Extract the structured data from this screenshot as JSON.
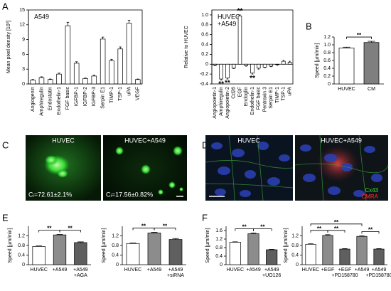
{
  "panel_labels": [
    "A",
    "B",
    "C",
    "D",
    "E",
    "F"
  ],
  "images": [
    {
      "title": "HUVEC",
      "caption": "Cᵢ=72.61±2.1%"
    },
    {
      "title": "HUVEC+A549",
      "caption": "Cᵢ=17.56±0.82%"
    },
    {
      "title": "HUVEC"
    },
    {
      "title": "HUVEC+A549",
      "legend": [
        "Cx43",
        "CMRA"
      ]
    }
  ],
  "chart_data": [
    {
      "type": "bar",
      "title": [
        "A549"
      ],
      "y_label": "Mean pixel density [10³]",
      "categories": [
        "Angiogenin",
        "Amphiregulin",
        "Endostatin",
        "Endothelin-1",
        "FGF basic",
        "IGFBP-1",
        "IGFBP-2",
        "IGFBP-3",
        "Serpin E1",
        "TIMP-1",
        "TSP-1",
        "uPA",
        "VEGF"
      ],
      "values": [
        0.8,
        1.3,
        0.9,
        2.0,
        11.8,
        4.2,
        1.1,
        1.6,
        9.1,
        4.7,
        7.1,
        12.3,
        0.9
      ],
      "errors": [
        0.1,
        0.15,
        0.1,
        0.2,
        0.7,
        0.3,
        0.1,
        0.2,
        0.4,
        0.3,
        0.4,
        0.6,
        0.1
      ],
      "colors": [
        "#ffffff",
        "#ffffff",
        "#ffffff",
        "#ffffff",
        "#ffffff",
        "#ffffff",
        "#ffffff",
        "#ffffff",
        "#ffffff",
        "#ffffff",
        "#ffffff",
        "#ffffff",
        "#ffffff"
      ],
      "ylim": [
        0,
        15
      ],
      "yticks": [
        0,
        3,
        6,
        9,
        12,
        15
      ]
    },
    {
      "type": "bar",
      "title": [
        "HUVEC",
        "+A549"
      ],
      "y_label": "Relative to HUVEC",
      "categories": [
        "Angiopoietin-1",
        "Amphiregulin",
        "Angiopoietin-2",
        "Cd26",
        "EGF",
        "Endoglin",
        "Endothelin-1",
        "FGF basic",
        "Pentraxin 3",
        "Serpin E1",
        "TIMP-1",
        "TSP-1",
        "uPA"
      ],
      "values": [
        -0.02,
        -0.3,
        -0.28,
        -0.08,
        0.98,
        -0.03,
        -0.18,
        -0.08,
        -0.06,
        -0.04,
        -0.01,
        0.06,
        0.04
      ],
      "errors": [
        0.01,
        0.02,
        0.02,
        0.01,
        0.02,
        0.01,
        0.02,
        0.02,
        0.01,
        0.01,
        0.01,
        0.02,
        0.02
      ],
      "colors": [
        "#ffffff",
        "#ffffff",
        "#ffffff",
        "#ffffff",
        "#ffffff",
        "#ffffff",
        "#ffffff",
        "#ffffff",
        "#ffffff",
        "#ffffff",
        "#ffffff",
        "#ffffff",
        "#ffffff"
      ],
      "value_annotations": [
        null,
        "**",
        "**",
        null,
        "**",
        null,
        "**",
        null,
        null,
        null,
        null,
        null,
        null
      ],
      "ylim": [
        -0.4,
        1.1
      ],
      "yticks": [
        -0.4,
        -0.2,
        0,
        0.2,
        0.4,
        0.6,
        0.8,
        {
          "value": 1,
          "label": "1.0"
        }
      ]
    },
    {
      "type": "bar",
      "y_label": "Speed [µm/min]",
      "categories": [
        [
          "HUVEC"
        ],
        [
          "CM"
        ]
      ],
      "values": [
        0.92,
        1.06
      ],
      "errors": [
        0.02,
        0.03
      ],
      "colors": [
        "#ffffff",
        "#7f7f7f"
      ],
      "comparisons": [
        {
          "pair": [
            0,
            1
          ],
          "label": "**"
        }
      ],
      "ylim": [
        0,
        1.2
      ],
      "yticks": [
        0,
        0.2,
        0.4,
        0.6,
        0.8,
        {
          "value": 1,
          "label": "1.0"
        },
        1.2
      ]
    },
    {
      "type": "bar",
      "y_label": "Speed [µm/min]",
      "categories": [
        [
          "HUVEC"
        ],
        [
          "+A549"
        ],
        [
          "+A549",
          "+AGA"
        ]
      ],
      "values": [
        0.76,
        1.24,
        0.92
      ],
      "errors": [
        0.02,
        0.02,
        0.03
      ],
      "colors": [
        "#ffffff",
        "#8c8c8c",
        "#5f5f5f"
      ],
      "comparisons": [
        {
          "pair": [
            0,
            1
          ],
          "label": "**"
        },
        {
          "pair": [
            1,
            2
          ],
          "label": "**"
        }
      ],
      "ylim": [
        0,
        1.6
      ],
      "yticks": [
        0,
        0.4,
        0.8,
        1.2
      ]
    },
    {
      "type": "bar",
      "y_label": "Speed [µm/min]",
      "categories": [
        [
          "HUVEC"
        ],
        [
          "+A549"
        ],
        [
          "+A549",
          "+siRNA"
        ]
      ],
      "values": [
        0.88,
        1.32,
        1.05
      ],
      "errors": [
        0.02,
        0.03,
        0.04
      ],
      "colors": [
        "#ffffff",
        "#8c8c8c",
        "#5f5f5f"
      ],
      "comparisons": [
        {
          "pair": [
            0,
            1
          ],
          "label": "**"
        },
        {
          "pair": [
            1,
            2
          ],
          "label": "**"
        }
      ],
      "ylim": [
        0,
        1.6
      ],
      "yticks": [
        0,
        0.4,
        0.8,
        1.2
      ]
    },
    {
      "type": "bar",
      "y_label": "Speed [µm/min]",
      "categories": [
        [
          "HUVEC"
        ],
        [
          "+A549"
        ],
        [
          "+A549",
          "+UO126"
        ]
      ],
      "values": [
        1.05,
        1.45,
        0.7
      ],
      "errors": [
        0.02,
        0.03,
        0.02
      ],
      "colors": [
        "#ffffff",
        "#8c8c8c",
        "#5f5f5f"
      ],
      "comparisons": [
        {
          "pair": [
            0,
            1
          ],
          "label": "**"
        },
        {
          "pair": [
            1,
            2
          ],
          "label": "**"
        }
      ],
      "ylim": [
        0,
        1.8
      ],
      "yticks": [
        0,
        0.4,
        0.8,
        1.2,
        1.6
      ]
    },
    {
      "type": "bar",
      "y_label": "Speed [µm/min]",
      "categories": [
        [
          "HUVEC"
        ],
        [
          "+EGF"
        ],
        [
          "+EGF",
          "+PD158780"
        ],
        [
          "+A549"
        ],
        [
          "+A549",
          "+PD158780"
        ]
      ],
      "values": [
        0.85,
        1.22,
        0.65,
        1.18,
        0.65
      ],
      "errors": [
        0.02,
        0.03,
        0.02,
        0.02,
        0.02
      ],
      "colors": [
        "#ffffff",
        "#8c8c8c",
        "#5f5f5f",
        "#8c8c8c",
        "#5f5f5f"
      ],
      "comparisons": [
        {
          "pair": [
            0,
            1
          ],
          "label": "**"
        },
        {
          "pair": [
            1,
            2
          ],
          "label": "**"
        },
        {
          "pair": [
            3,
            4
          ],
          "label": "**"
        },
        {
          "pair": [
            0,
            3
          ],
          "label": "**"
        }
      ],
      "ylim": [
        0,
        1.6
      ],
      "yticks": [
        0,
        0.4,
        0.8,
        1.2
      ]
    }
  ]
}
